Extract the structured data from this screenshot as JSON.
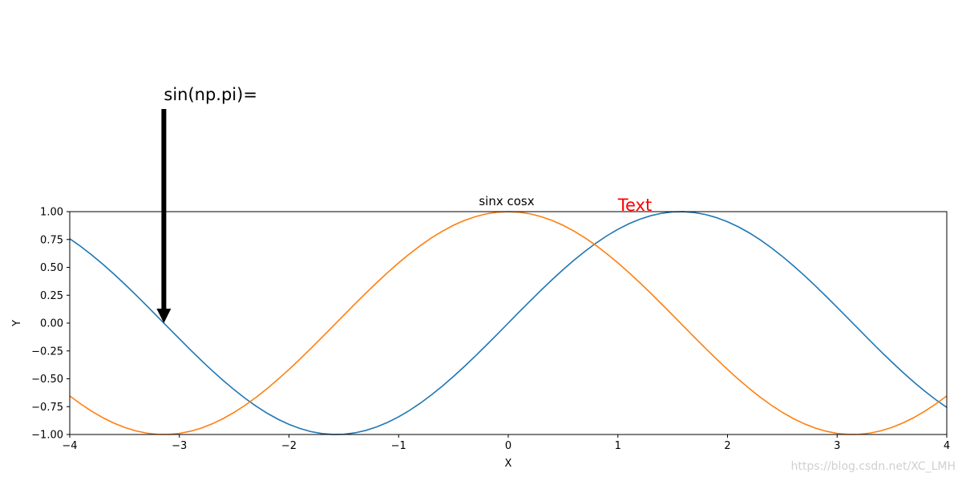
{
  "chart_data": {
    "type": "line",
    "title": "sinx cosx",
    "xlabel": "X",
    "ylabel": "Y",
    "xlim": [
      -4,
      4
    ],
    "ylim": [
      -1,
      1
    ],
    "xticks": [
      -4,
      -3,
      -2,
      -1,
      0,
      1,
      2,
      3,
      4
    ],
    "xtick_labels": [
      "−4",
      "−3",
      "−2",
      "−1",
      "0",
      "1",
      "2",
      "3",
      "4"
    ],
    "yticks": [
      -1,
      -0.75,
      -0.5,
      -0.25,
      0,
      0.25,
      0.5,
      0.75,
      1
    ],
    "ytick_labels": [
      "−1.00",
      "−0.75",
      "−0.50",
      "−0.25",
      "0.00",
      "0.25",
      "0.50",
      "0.75",
      "1.00"
    ],
    "grid": false,
    "series": [
      {
        "function": "sin",
        "color": "#1f77b4",
        "x": [
          -4,
          -3.5,
          -3,
          -2.5,
          -2,
          -1.5,
          -1,
          -0.5,
          0,
          0.5,
          1,
          1.5,
          2,
          2.5,
          3,
          3.5,
          4
        ],
        "y": [
          0.757,
          0.351,
          -0.141,
          -0.598,
          -0.909,
          -0.997,
          -0.841,
          -0.479,
          0,
          0.479,
          0.841,
          0.997,
          0.909,
          0.598,
          0.141,
          -0.351,
          -0.757
        ]
      },
      {
        "function": "cos",
        "color": "#ff7f0e",
        "x": [
          -4,
          -3.5,
          -3,
          -2.5,
          -2,
          -1.5,
          -1,
          -0.5,
          0,
          0.5,
          1,
          1.5,
          2,
          2.5,
          3,
          3.5,
          4
        ],
        "y": [
          -0.654,
          -0.936,
          -0.99,
          -0.801,
          -0.416,
          0.071,
          0.54,
          0.878,
          1,
          0.878,
          0.54,
          0.071,
          -0.416,
          -0.801,
          -0.99,
          -0.936,
          -0.654
        ]
      }
    ],
    "annotations": [
      {
        "text": "sin(np.pi)=",
        "point": [
          -3.1416,
          0
        ],
        "arrow": true,
        "color": "#000000"
      },
      {
        "text": "Text",
        "point": [
          1,
          1
        ],
        "arrow": false,
        "color": "#ff0000"
      }
    ]
  },
  "watermark": "https://blog.csdn.net/XC_LMH"
}
